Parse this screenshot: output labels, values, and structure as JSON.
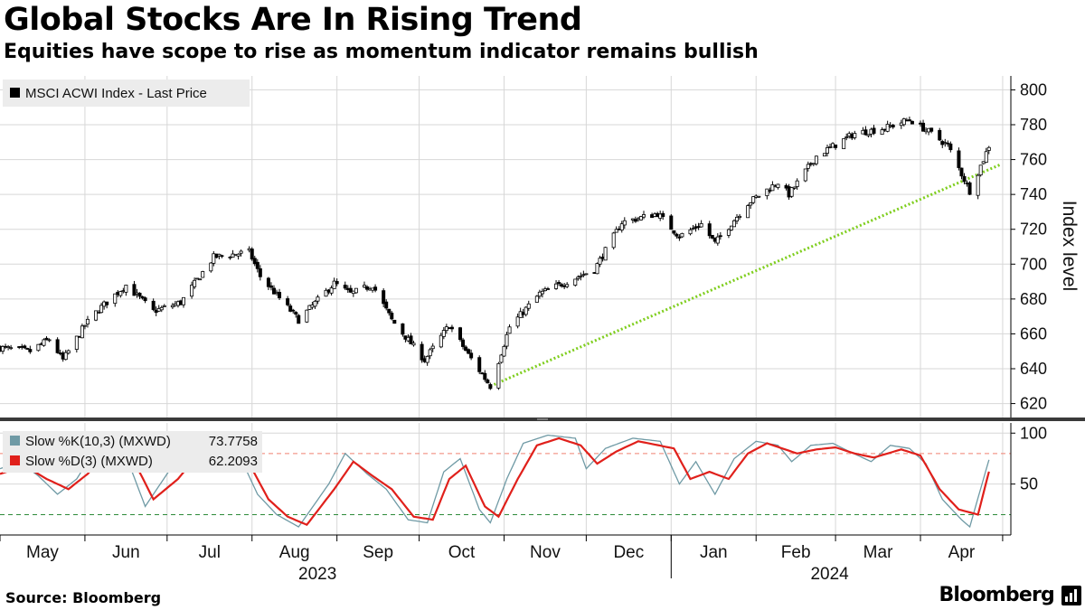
{
  "title": "Global Stocks Are In Rising Trend",
  "subtitle": "Equities have scope to rise as momentum indicator remains bullish",
  "source": "Source: Bloomberg",
  "brand": "Bloomberg",
  "brand_icon": "bloomberg-terminal-icon",
  "colors": {
    "candle": "#000000",
    "trendline": "#7fce1e",
    "k_line": "#6f9aa5",
    "d_line": "#e0201b",
    "upper_band": "#f08070",
    "lower_band": "#2e8b3a",
    "grid": "#d7d7d7",
    "legend_bg": "#ececec"
  },
  "chart_data": [
    {
      "type": "candlestick",
      "legend": [
        "MSCI ACWI Index - Last Price"
      ],
      "ylabel": "Index level",
      "ylim": [
        612,
        808
      ],
      "yticks": [
        620,
        640,
        660,
        680,
        700,
        720,
        740,
        760,
        780,
        800
      ],
      "xlabel": "",
      "x_month_labels": [
        "May",
        "Jun",
        "Jul",
        "Aug",
        "Sep",
        "Oct",
        "Nov",
        "Dec",
        "Jan",
        "Feb",
        "Mar",
        "Apr"
      ],
      "x_year_labels": [
        "2023",
        "2024"
      ],
      "period": [
        "2023-05-01",
        "2024-04-26"
      ],
      "close_anchors": [
        {
          "date": "2023-05-01",
          "close": 652
        },
        {
          "date": "2023-05-12",
          "close": 650
        },
        {
          "date": "2023-05-19",
          "close": 657
        },
        {
          "date": "2023-05-24",
          "close": 645
        },
        {
          "date": "2023-06-01",
          "close": 665
        },
        {
          "date": "2023-06-06",
          "close": 674
        },
        {
          "date": "2023-06-16",
          "close": 688
        },
        {
          "date": "2023-06-26",
          "close": 673
        },
        {
          "date": "2023-07-06",
          "close": 678
        },
        {
          "date": "2023-07-18",
          "close": 704
        },
        {
          "date": "2023-07-31",
          "close": 707
        },
        {
          "date": "2023-08-04",
          "close": 693
        },
        {
          "date": "2023-08-18",
          "close": 668
        },
        {
          "date": "2023-08-31",
          "close": 689
        },
        {
          "date": "2023-09-06",
          "close": 683
        },
        {
          "date": "2023-09-14",
          "close": 688
        },
        {
          "date": "2023-09-21",
          "close": 668
        },
        {
          "date": "2023-10-03",
          "close": 645
        },
        {
          "date": "2023-10-12",
          "close": 665
        },
        {
          "date": "2023-10-19",
          "close": 648
        },
        {
          "date": "2023-10-27",
          "close": 630
        },
        {
          "date": "2023-11-03",
          "close": 664
        },
        {
          "date": "2023-11-14",
          "close": 683
        },
        {
          "date": "2023-11-24",
          "close": 690
        },
        {
          "date": "2023-12-04",
          "close": 697
        },
        {
          "date": "2023-12-14",
          "close": 724
        },
        {
          "date": "2023-12-27",
          "close": 729
        },
        {
          "date": "2024-01-04",
          "close": 716
        },
        {
          "date": "2024-01-12",
          "close": 723
        },
        {
          "date": "2024-01-17",
          "close": 712
        },
        {
          "date": "2024-01-29",
          "close": 735
        },
        {
          "date": "2024-02-09",
          "close": 747
        },
        {
          "date": "2024-02-13",
          "close": 740
        },
        {
          "date": "2024-02-23",
          "close": 762
        },
        {
          "date": "2024-03-08",
          "close": 775
        },
        {
          "date": "2024-03-19",
          "close": 778
        },
        {
          "date": "2024-03-28",
          "close": 783
        },
        {
          "date": "2024-04-04",
          "close": 776
        },
        {
          "date": "2024-04-11",
          "close": 768
        },
        {
          "date": "2024-04-19",
          "close": 742
        },
        {
          "date": "2024-04-24",
          "close": 760
        },
        {
          "date": "2024-04-26",
          "close": 768
        }
      ],
      "trendline": [
        {
          "date": "2023-10-27",
          "value": 630
        },
        {
          "date": "2024-04-30",
          "value": 757
        }
      ]
    },
    {
      "type": "line",
      "title": "",
      "ylim": [
        0,
        110
      ],
      "yticks": [
        50,
        100
      ],
      "reference_lines": [
        80,
        20
      ],
      "series": [
        {
          "name": "Slow %K(10,3) (MXWD)",
          "last_value": "73.7758",
          "anchors": [
            {
              "date": "2023-05-01",
              "value": 65
            },
            {
              "date": "2023-05-08",
              "value": 72
            },
            {
              "date": "2023-05-15",
              "value": 58
            },
            {
              "date": "2023-05-22",
              "value": 40
            },
            {
              "date": "2023-05-29",
              "value": 55
            },
            {
              "date": "2023-06-06",
              "value": 90
            },
            {
              "date": "2023-06-14",
              "value": 92
            },
            {
              "date": "2023-06-23",
              "value": 28
            },
            {
              "date": "2023-07-03",
              "value": 68
            },
            {
              "date": "2023-07-12",
              "value": 90
            },
            {
              "date": "2023-07-25",
              "value": 92
            },
            {
              "date": "2023-08-03",
              "value": 40
            },
            {
              "date": "2023-08-10",
              "value": 20
            },
            {
              "date": "2023-08-18",
              "value": 8
            },
            {
              "date": "2023-08-29",
              "value": 50
            },
            {
              "date": "2023-09-04",
              "value": 80
            },
            {
              "date": "2023-09-12",
              "value": 60
            },
            {
              "date": "2023-09-19",
              "value": 45
            },
            {
              "date": "2023-09-27",
              "value": 15
            },
            {
              "date": "2023-10-04",
              "value": 12
            },
            {
              "date": "2023-10-10",
              "value": 62
            },
            {
              "date": "2023-10-16",
              "value": 75
            },
            {
              "date": "2023-10-23",
              "value": 25
            },
            {
              "date": "2023-10-27",
              "value": 12
            },
            {
              "date": "2023-11-02",
              "value": 55
            },
            {
              "date": "2023-11-08",
              "value": 90
            },
            {
              "date": "2023-11-17",
              "value": 98
            },
            {
              "date": "2023-11-27",
              "value": 95
            },
            {
              "date": "2023-12-01",
              "value": 65
            },
            {
              "date": "2023-12-08",
              "value": 85
            },
            {
              "date": "2023-12-18",
              "value": 95
            },
            {
              "date": "2023-12-28",
              "value": 92
            },
            {
              "date": "2024-01-04",
              "value": 50
            },
            {
              "date": "2024-01-10",
              "value": 72
            },
            {
              "date": "2024-01-17",
              "value": 40
            },
            {
              "date": "2024-01-24",
              "value": 75
            },
            {
              "date": "2024-02-01",
              "value": 92
            },
            {
              "date": "2024-02-09",
              "value": 88
            },
            {
              "date": "2024-02-14",
              "value": 72
            },
            {
              "date": "2024-02-21",
              "value": 88
            },
            {
              "date": "2024-02-29",
              "value": 90
            },
            {
              "date": "2024-03-06",
              "value": 82
            },
            {
              "date": "2024-03-14",
              "value": 72
            },
            {
              "date": "2024-03-21",
              "value": 88
            },
            {
              "date": "2024-03-28",
              "value": 85
            },
            {
              "date": "2024-04-03",
              "value": 70
            },
            {
              "date": "2024-04-09",
              "value": 35
            },
            {
              "date": "2024-04-16",
              "value": 15
            },
            {
              "date": "2024-04-19",
              "value": 8
            },
            {
              "date": "2024-04-24",
              "value": 55
            },
            {
              "date": "2024-04-26",
              "value": 73.78
            }
          ]
        },
        {
          "name": "Slow %D(3) (MXWD)",
          "last_value": "62.2093",
          "anchors": [
            {
              "date": "2023-05-01",
              "value": 60
            },
            {
              "date": "2023-05-10",
              "value": 68
            },
            {
              "date": "2023-05-18",
              "value": 55
            },
            {
              "date": "2023-05-26",
              "value": 45
            },
            {
              "date": "2023-06-02",
              "value": 60
            },
            {
              "date": "2023-06-09",
              "value": 82
            },
            {
              "date": "2023-06-16",
              "value": 88
            },
            {
              "date": "2023-06-26",
              "value": 35
            },
            {
              "date": "2023-07-05",
              "value": 55
            },
            {
              "date": "2023-07-14",
              "value": 85
            },
            {
              "date": "2023-07-27",
              "value": 90
            },
            {
              "date": "2023-08-07",
              "value": 35
            },
            {
              "date": "2023-08-14",
              "value": 18
            },
            {
              "date": "2023-08-21",
              "value": 10
            },
            {
              "date": "2023-08-31",
              "value": 45
            },
            {
              "date": "2023-09-07",
              "value": 72
            },
            {
              "date": "2023-09-14",
              "value": 58
            },
            {
              "date": "2023-09-21",
              "value": 45
            },
            {
              "date": "2023-09-29",
              "value": 18
            },
            {
              "date": "2023-10-06",
              "value": 15
            },
            {
              "date": "2023-10-12",
              "value": 55
            },
            {
              "date": "2023-10-18",
              "value": 68
            },
            {
              "date": "2023-10-25",
              "value": 28
            },
            {
              "date": "2023-10-30",
              "value": 18
            },
            {
              "date": "2023-11-06",
              "value": 55
            },
            {
              "date": "2023-11-13",
              "value": 88
            },
            {
              "date": "2023-11-21",
              "value": 95
            },
            {
              "date": "2023-11-29",
              "value": 88
            },
            {
              "date": "2023-12-05",
              "value": 70
            },
            {
              "date": "2023-12-12",
              "value": 82
            },
            {
              "date": "2023-12-20",
              "value": 92
            },
            {
              "date": "2024-01-02",
              "value": 85
            },
            {
              "date": "2024-01-08",
              "value": 55
            },
            {
              "date": "2024-01-15",
              "value": 62
            },
            {
              "date": "2024-01-22",
              "value": 55
            },
            {
              "date": "2024-01-29",
              "value": 80
            },
            {
              "date": "2024-02-05",
              "value": 90
            },
            {
              "date": "2024-02-16",
              "value": 80
            },
            {
              "date": "2024-02-23",
              "value": 84
            },
            {
              "date": "2024-03-01",
              "value": 86
            },
            {
              "date": "2024-03-08",
              "value": 80
            },
            {
              "date": "2024-03-15",
              "value": 76
            },
            {
              "date": "2024-03-25",
              "value": 84
            },
            {
              "date": "2024-04-01",
              "value": 78
            },
            {
              "date": "2024-04-08",
              "value": 45
            },
            {
              "date": "2024-04-15",
              "value": 25
            },
            {
              "date": "2024-04-22",
              "value": 20
            },
            {
              "date": "2024-04-26",
              "value": 62.21
            }
          ]
        }
      ]
    }
  ]
}
